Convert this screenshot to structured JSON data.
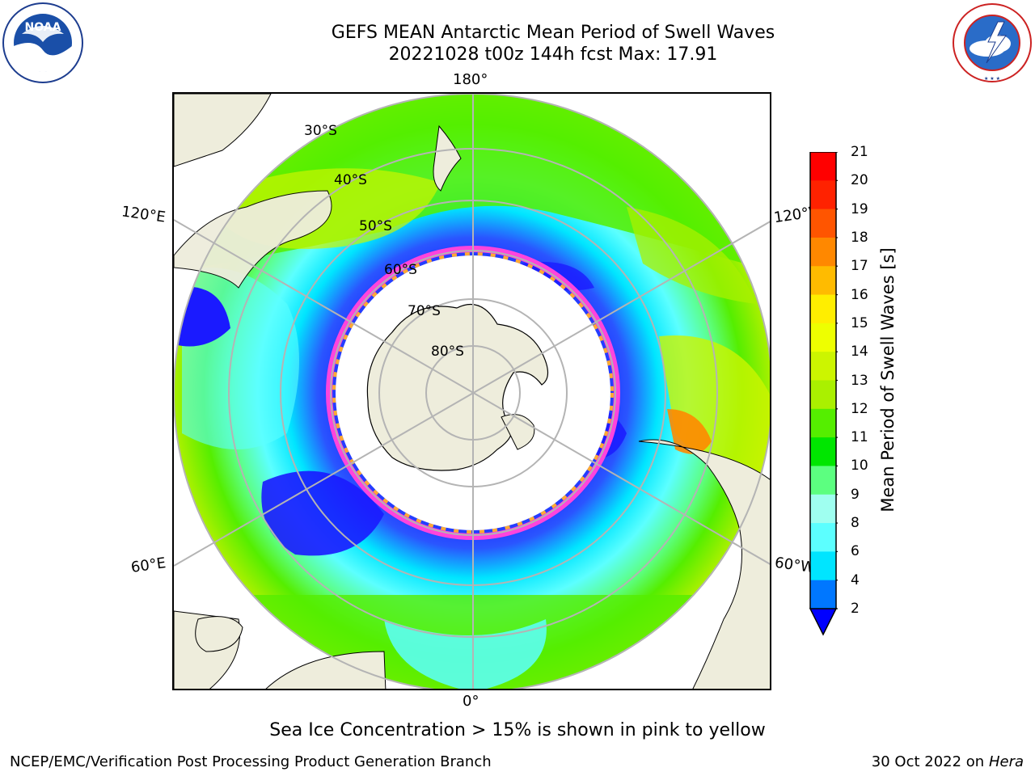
{
  "title": {
    "line1": "GEFS MEAN Antarctic Mean Period of Swell Waves",
    "line2": "20221028 t00z 144h fcst   Max: 17.91"
  },
  "map": {
    "projection": "south polar stereographic",
    "meridian_labels": {
      "top": "180°",
      "bottom": "0°",
      "left_upper": "120°E",
      "left_lower": "60°E",
      "right_upper": "120°W",
      "right_lower": "60°W"
    },
    "parallel_labels": [
      "30°S",
      "40°S",
      "50°S",
      "60°S",
      "70°S",
      "80°S"
    ],
    "land_color": "#eeeddc",
    "ice_color": "#ffffff",
    "ice_edge_colors": [
      "#ff44dd",
      "#ffaa33"
    ],
    "gridline_color": "#b4b4b4"
  },
  "colorbar": {
    "label": "Mean Period of Swell Waves [s]",
    "ticks": [
      "2",
      "4",
      "6",
      "8",
      "9",
      "10",
      "11",
      "12",
      "13",
      "14",
      "15",
      "16",
      "17",
      "18",
      "19",
      "20",
      "21"
    ],
    "colors": [
      "#1a1aff",
      "#0077ff",
      "#00e5ff",
      "#5cffff",
      "#9ffff0",
      "#5cff80",
      "#00e600",
      "#55ee00",
      "#aaf000",
      "#ccf500",
      "#eeff00",
      "#ffee00",
      "#ffbb00",
      "#ff8800",
      "#ff5500",
      "#ff2200",
      "#ff0000"
    ]
  },
  "caption": "Sea Ice Concentration > 15% is shown in pink to yellow",
  "footer": {
    "left": "NCEP/EMC/Verification Post Processing Product Generation Branch",
    "right_date": "30 Oct 2022 on",
    "right_machine": "Hera"
  },
  "logos": {
    "noaa_text": "NOAA",
    "noaa_ring": "NATIONAL OCEANIC AND ATMOSPHERIC ADMINISTRATION · U.S. DEPARTMENT OF COMMERCE",
    "nws_ring": "NATIONAL WEATHER SERVICE"
  }
}
